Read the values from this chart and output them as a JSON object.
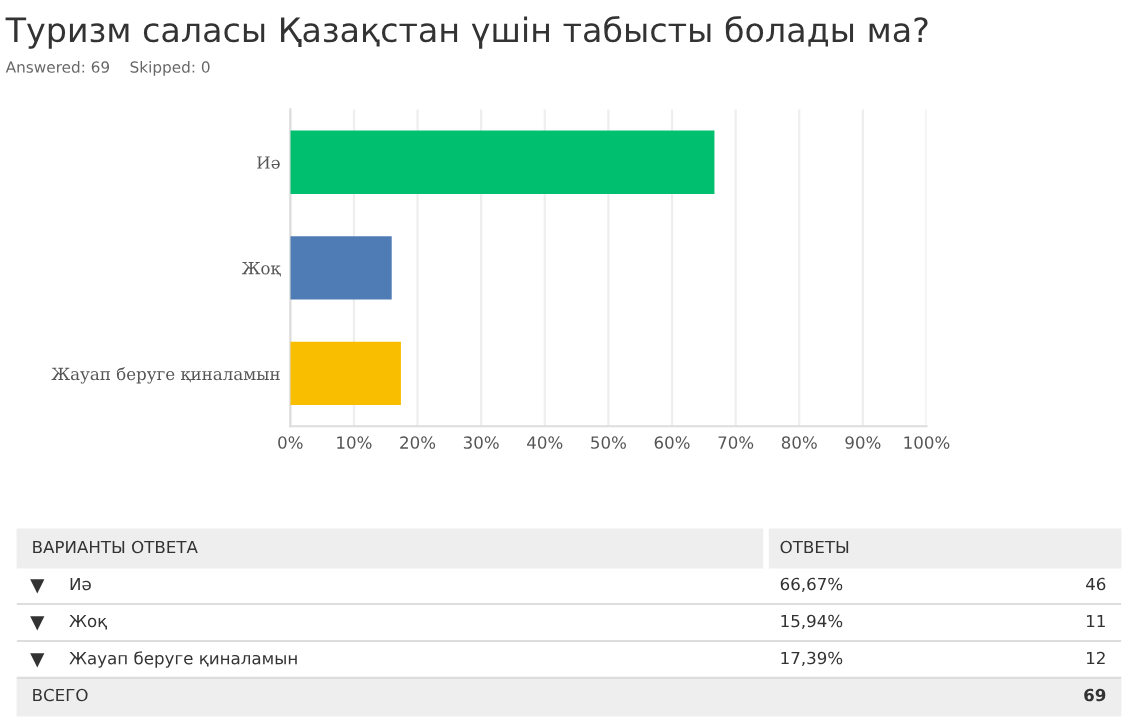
{
  "chart_data": {
    "type": "bar",
    "orientation": "horizontal",
    "title": "Туризм саласы Қазақстан үшін табысты болады ма?",
    "subtitle": "Answered: 69    Skipped: 0",
    "categories": [
      "Иә",
      "Жоқ",
      "Жауап беруге қиналамын"
    ],
    "values": [
      66.67,
      15.94,
      17.39
    ],
    "colors": [
      "#00bf6f",
      "#507cb6",
      "#f9be00"
    ],
    "annotations": [
      "ВАРИАНТЫ ОТВЕТА",
      "ОТВЕТЫ",
      "66,67%",
      "15,94%",
      "17,39%",
      "46",
      "11",
      "12",
      "ВСЕГО",
      "69"
    ],
    "xlim": [
      0,
      100
    ],
    "xticks": [
      {
        "value": 0,
        "label": "0%"
      },
      {
        "value": 10,
        "label": "10%"
      },
      {
        "value": 20,
        "label": "20%"
      },
      {
        "value": 30,
        "label": "30%"
      },
      {
        "value": 40,
        "label": "40%"
      },
      {
        "value": 50,
        "label": "50%"
      },
      {
        "value": 60,
        "label": "60%"
      },
      {
        "value": 70,
        "label": "70%"
      },
      {
        "value": 80,
        "label": "80%"
      },
      {
        "value": 90,
        "label": "90%"
      },
      {
        "value": 100,
        "label": "100%"
      }
    ],
    "grid": "x",
    "legend": false
  }
}
